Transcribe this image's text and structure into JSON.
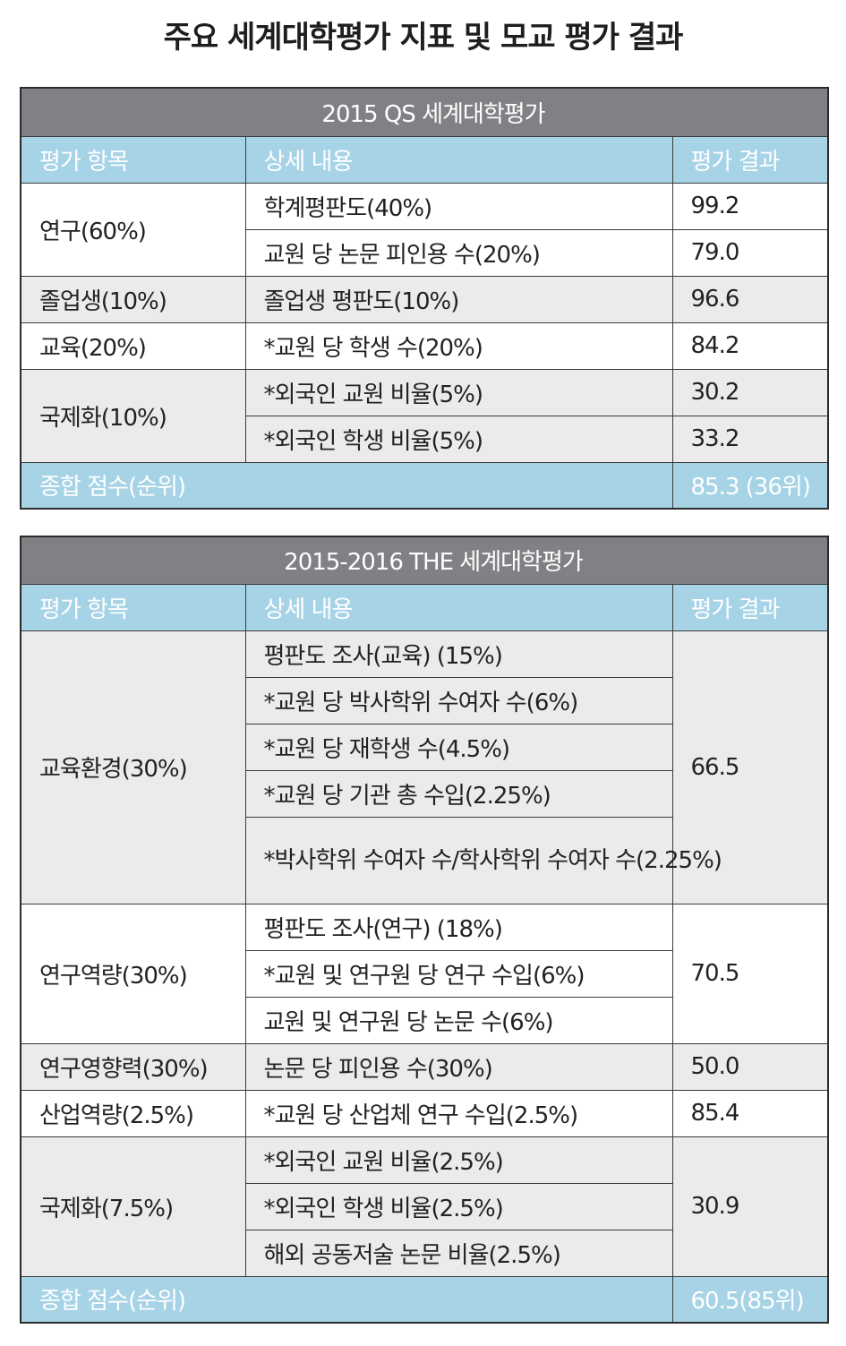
{
  "title": "주요 세계대학평가 지표 및 모교 평가 결과",
  "headers": {
    "category": "평가 항목",
    "detail": "상세 내용",
    "result": "평가 결과"
  },
  "qs": {
    "caption": "2015 QS 세계대학평가",
    "rows": [
      {
        "category": "연구(60%)",
        "detail": "학계평판도(40%)",
        "result": "99.2"
      },
      {
        "detail": "교원 당 논문 피인용 수(20%)",
        "result": "79.0"
      },
      {
        "category": "졸업생(10%)",
        "detail": "졸업생 평판도(10%)",
        "result": "96.6"
      },
      {
        "category": "교육(20%)",
        "detail": "*교원 당 학생 수(20%)",
        "result": "84.2"
      },
      {
        "category": "국제화(10%)",
        "detail": "*외국인 교원 비율(5%)",
        "result": "30.2"
      },
      {
        "detail": "*외국인 학생 비율(5%)",
        "result": "33.2"
      }
    ],
    "total_label": "종합 점수(순위)",
    "total_value": "85.3 (36위)"
  },
  "the": {
    "caption": "2015-2016 THE 세계대학평가",
    "rows": [
      {
        "category": "교육환경(30%)",
        "detail": "평판도 조사(교육) (15%)",
        "result": "66.5"
      },
      {
        "detail": "*교원 당 박사학위 수여자 수(6%)"
      },
      {
        "detail": "*교원 당 재학생 수(4.5%)"
      },
      {
        "detail": "*교원 당 기관 총 수입(2.25%)"
      },
      {
        "detail": "*박사학위 수여자 수/학사학위 수여자 수(2.25%)"
      },
      {
        "category": "연구역량(30%)",
        "detail": "평판도 조사(연구) (18%)",
        "result": "70.5"
      },
      {
        "detail": "*교원 및 연구원 당 연구 수입(6%)"
      },
      {
        "detail": "교원 및 연구원 당 논문 수(6%)"
      },
      {
        "category": "연구영향력(30%)",
        "detail": "논문 당 피인용 수(30%)",
        "result": "50.0"
      },
      {
        "category": "산업역량(2.5%)",
        "detail": "*교원 당 산업체 연구 수입(2.5%)",
        "result": "85.4"
      },
      {
        "category": "국제화(7.5%)",
        "detail": "*외국인 교원 비율(2.5%)",
        "result": "30.9"
      },
      {
        "detail": "*외국인 학생 비율(2.5%)"
      },
      {
        "detail": "해외 공동저술 논문 비율(2.5%)"
      }
    ],
    "total_label": "종합 점수(순위)",
    "total_value": "60.5(85위)"
  }
}
